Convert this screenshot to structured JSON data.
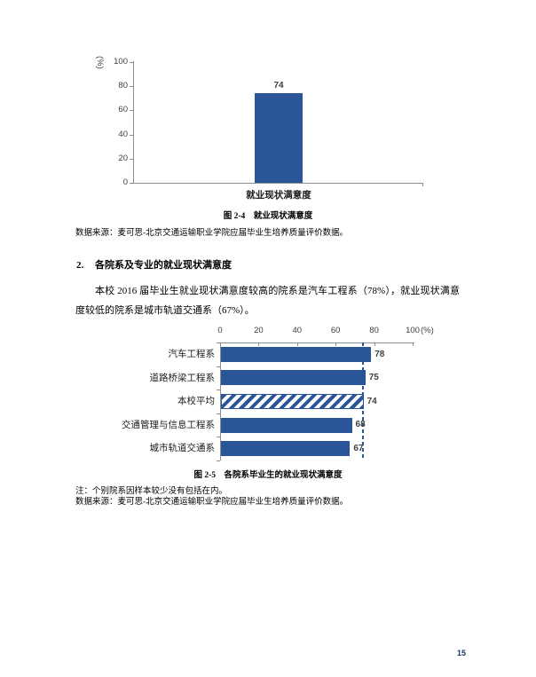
{
  "page": {
    "number": "15"
  },
  "captions": {
    "fig24": "图 2-4　就业现状满意度",
    "fig25": "图 2-5　各院系毕业生的就业现状满意度"
  },
  "sources": {
    "s1": "数据来源：麦可思-北京交通运输职业学院应届毕业生培养质量评价数据。",
    "s2": "数据来源：麦可思-北京交通运输职业学院应届毕业生培养质量评价数据。"
  },
  "note": "注：个别院系因样本较少没有包括在内。",
  "section": {
    "number": "2.",
    "title": "各院系及专业的就业现状满意度"
  },
  "paragraph": "本校 2016 届毕业生就业现状满意度较高的院系是汽车工程系（78%），就业现状满意度较低的院系是城市轨道交通系（67%）。",
  "colors": {
    "bar_blue": "#2a5699",
    "label_gray": "#404040",
    "axis_gray": "#8c8c8c",
    "page_number": "#1f3864"
  },
  "chart_data": [
    {
      "type": "bar",
      "orientation": "vertical",
      "title": "图 2-4 就业现状满意度",
      "categories": [
        "就业现状满意度"
      ],
      "values": [
        74
      ],
      "value_labels": [
        "74"
      ],
      "ylabel": "(%)",
      "ylim": [
        0,
        100
      ],
      "yticks": [
        0,
        20,
        40,
        60,
        80,
        100
      ],
      "grid": false,
      "legend": "none"
    },
    {
      "type": "bar",
      "orientation": "horizontal",
      "title": "图 2-5 各院系毕业生的就业现状满意度",
      "categories": [
        "汽车工程系",
        "道路桥梁工程系",
        "本校平均",
        "交通管理与信息工程系",
        "城市轨道交通系"
      ],
      "values": [
        78,
        75,
        74,
        68,
        67
      ],
      "value_labels": [
        "78",
        "75",
        "74",
        "68",
        "67"
      ],
      "hatched": [
        false,
        false,
        true,
        false,
        false
      ],
      "xlabel": "(%)",
      "xlim": [
        0,
        100
      ],
      "xticks": [
        0,
        20,
        40,
        60,
        80,
        100
      ],
      "average_line": 74,
      "grid": false,
      "legend": "none"
    }
  ]
}
